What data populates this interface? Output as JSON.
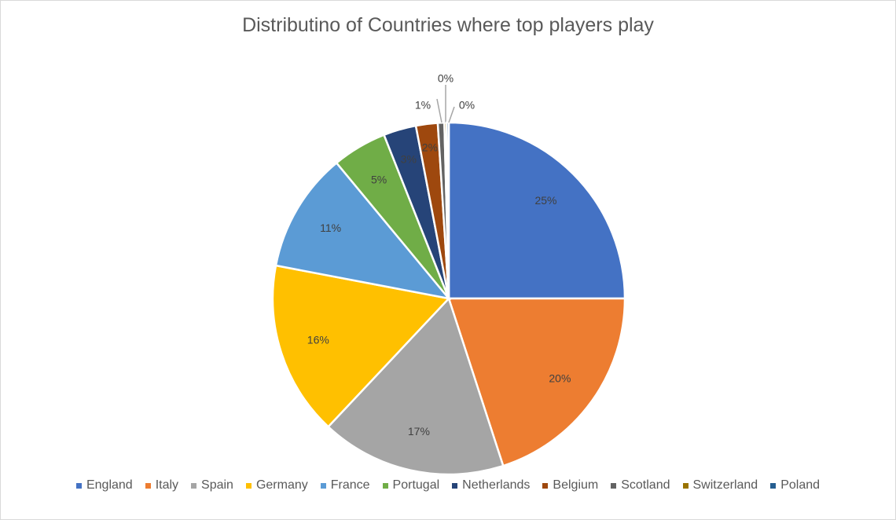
{
  "chart_data": {
    "type": "pie",
    "title": "Distributino of Countries where top players play",
    "legend_position": "bottom",
    "slices": [
      {
        "label": "England",
        "value": 25,
        "data_label": "25%",
        "color": "#4472c4"
      },
      {
        "label": "Italy",
        "value": 20,
        "data_label": "20%",
        "color": "#ed7d31"
      },
      {
        "label": "Spain",
        "value": 17,
        "data_label": "17%",
        "color": "#a5a5a5"
      },
      {
        "label": "Germany",
        "value": 16,
        "data_label": "16%",
        "color": "#ffc000"
      },
      {
        "label": "France",
        "value": 11,
        "data_label": "11%",
        "color": "#5b9bd5"
      },
      {
        "label": "Portugal",
        "value": 5,
        "data_label": "5%",
        "color": "#70ad47"
      },
      {
        "label": "Netherlands",
        "value": 3,
        "data_label": "3%",
        "color": "#264478"
      },
      {
        "label": "Belgium",
        "value": 2,
        "data_label": "2%",
        "color": "#9e480e"
      },
      {
        "label": "Scotland",
        "value": 0.6,
        "data_label": "1%",
        "color": "#636363"
      },
      {
        "label": "Switzerland",
        "value": 0.2,
        "data_label": "0%",
        "color": "#997300"
      },
      {
        "label": "Poland",
        "value": 0.2,
        "data_label": "0%",
        "color": "#255e91"
      }
    ]
  }
}
